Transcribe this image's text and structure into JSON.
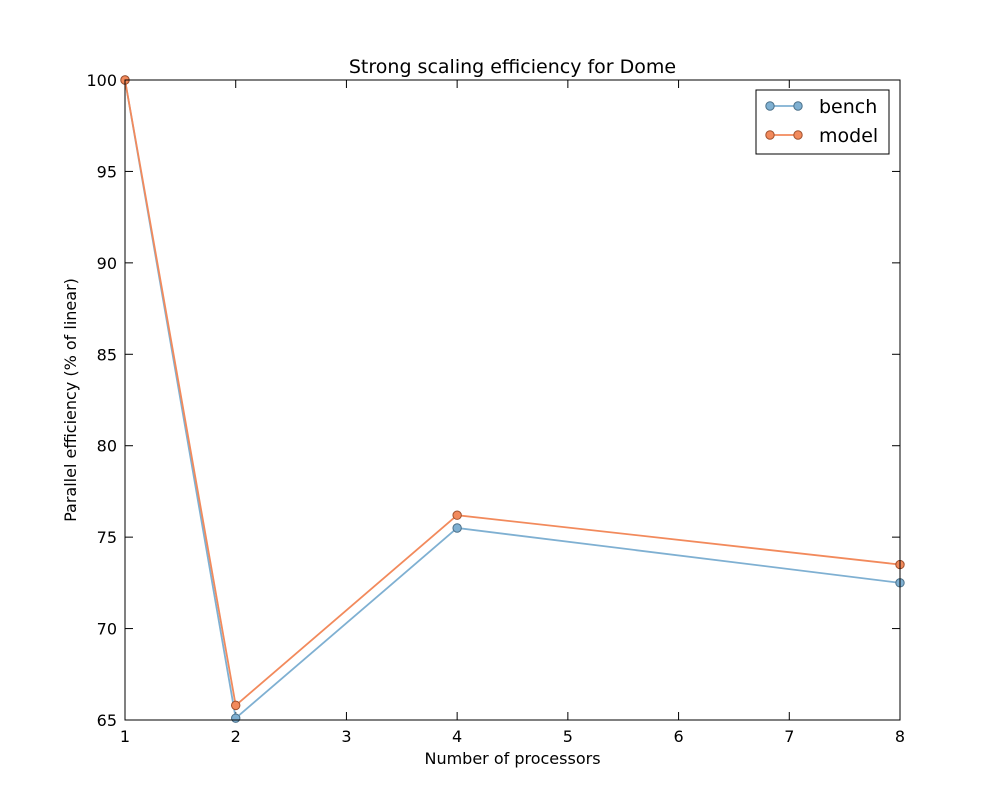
{
  "chart_data": {
    "type": "line",
    "title": "Strong scaling efficiency for Dome",
    "xlabel": "Number of processors",
    "ylabel": "Parallel efficiency (% of linear)",
    "xlim": [
      1,
      8
    ],
    "ylim": [
      65,
      100
    ],
    "x_ticks": [
      "1",
      "2",
      "3",
      "4",
      "5",
      "6",
      "7",
      "8"
    ],
    "y_ticks": [
      "65",
      "70",
      "75",
      "80",
      "85",
      "90",
      "95",
      "100"
    ],
    "grid": false,
    "legend_position": "top-right",
    "x": [
      1,
      2,
      4,
      8
    ],
    "series": [
      {
        "name": "bench",
        "color": "#7fb0d2",
        "marker_edge": "#4a6f88",
        "values": [
          100,
          65.1,
          75.5,
          72.5
        ]
      },
      {
        "name": "model",
        "color": "#f28a5c",
        "marker_edge": "#a0502d",
        "values": [
          100,
          65.8,
          76.2,
          73.5
        ]
      }
    ]
  }
}
